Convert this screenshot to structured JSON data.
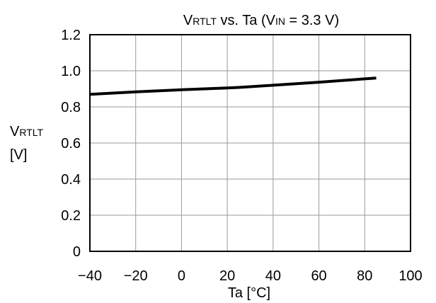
{
  "chart_data": {
    "type": "line",
    "title": {
      "main": "V",
      "main_sub": "RTLT",
      "mid": " vs. Ta (V",
      "mid_sub": "IN",
      "end": " = 3.3 V)"
    },
    "xlabel": "Ta [°C]",
    "ylabel": {
      "main": "V",
      "sub": "RTLT",
      "unit": "[V]"
    },
    "xlim": [
      -40,
      100
    ],
    "ylim": [
      0,
      1.2
    ],
    "x_ticks": [
      -40,
      -20,
      0,
      20,
      40,
      60,
      80,
      100
    ],
    "x_tick_labels": [
      "−40",
      "−20",
      "0",
      "20",
      "40",
      "60",
      "80",
      "100"
    ],
    "y_ticks": [
      0,
      0.2,
      0.4,
      0.6,
      0.8,
      1.0,
      1.2
    ],
    "y_tick_labels": [
      "0",
      "0.2",
      "0.4",
      "0.6",
      "0.8",
      "1.0",
      "1.2"
    ],
    "grid": true,
    "series": [
      {
        "x": [
          -40,
          -20,
          0,
          20,
          25,
          40,
          60,
          85
        ],
        "y": [
          0.87,
          0.883,
          0.895,
          0.905,
          0.908,
          0.92,
          0.937,
          0.96
        ]
      }
    ]
  }
}
